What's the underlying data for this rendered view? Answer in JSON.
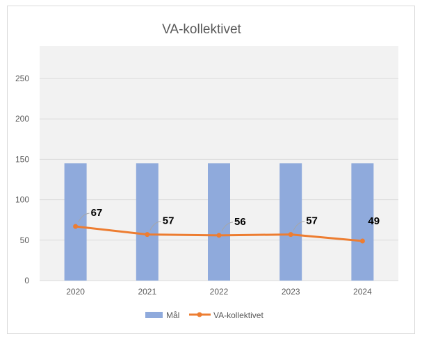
{
  "chart_data": {
    "type": "bar",
    "title": "VA-kollektivet",
    "xlabel": "",
    "ylabel": "",
    "categories": [
      "2020",
      "2021",
      "2022",
      "2023",
      "2024"
    ],
    "ylim": [
      0,
      250
    ],
    "yticks": [
      "0",
      "50",
      "100",
      "150",
      "200",
      "250"
    ],
    "grid": true,
    "legend_position": "bottom",
    "series": [
      {
        "name": "Mål",
        "type": "bar",
        "color": "#8faadc",
        "values": [
          145,
          145,
          145,
          145,
          145
        ]
      },
      {
        "name": "VA-kollektivet",
        "type": "line",
        "color": "#ed7d31",
        "values": [
          67,
          57,
          56,
          57,
          49
        ],
        "data_labels": [
          "67",
          "57",
          "56",
          "57",
          "49"
        ]
      }
    ]
  }
}
